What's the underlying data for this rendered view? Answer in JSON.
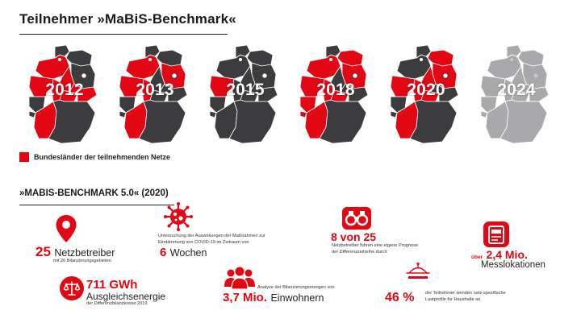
{
  "title": "Teilnehmer »MaBiS-Benchmark«",
  "maps": [
    {
      "year": "2012",
      "style": "mixed-a"
    },
    {
      "year": "2013",
      "style": "mixed-b"
    },
    {
      "year": "2015",
      "style": "mixed-c"
    },
    {
      "year": "2018",
      "style": "mixed-d"
    },
    {
      "year": "2020",
      "style": "mixed-e"
    },
    {
      "year": "2024",
      "style": "grey"
    }
  ],
  "colors": {
    "accent": "#e30613",
    "dark": "#3c3c3e",
    "grey": "#a9a9ab"
  },
  "legend": {
    "label": "Bundesländer der teilnehmenden Netze"
  },
  "section_title": "»MABIS-BENCHMARK 5.0« (2020)",
  "stats": {
    "netzbetreiber": {
      "number": "25",
      "label": "Netzbetreiber",
      "sub": "mit 26 Bilanzierungsgebieten",
      "icon": "location-pin-icon"
    },
    "covid": {
      "desc": "Untersuchung der Auswirkungen der Maßnahmen zur Eindämmung von COVID-19 im Zeitraum von",
      "number": "6",
      "label": "Wochen",
      "icon": "virus-icon"
    },
    "prognose": {
      "number": "8 von 25",
      "desc": "Netzbetreiber führen eine eigene Prognose der Differenzzeitreihe durch",
      "icon": "binoculars-icon"
    },
    "messlokationen": {
      "prefix": "über",
      "number": "2,4 Mio.",
      "label": "Messlokationen",
      "icon": "meter-icon"
    },
    "ausgleich": {
      "number": "711 GWh",
      "label": "Ausgleichsenergie",
      "sub": "der Differenzbilanzkreise 2019",
      "icon": "scales-icon"
    },
    "einwohner": {
      "desc": "Analyse der Bilanzierungsmengen von",
      "number": "3,7 Mio.",
      "label": "Einwohnern",
      "icon": "people-icon"
    },
    "lastprofile": {
      "number": "46 %",
      "desc": "der Teilnehmer wenden netz-spezifische Lastprofile für Haushalte an",
      "icon": "house-profile-icon"
    }
  }
}
